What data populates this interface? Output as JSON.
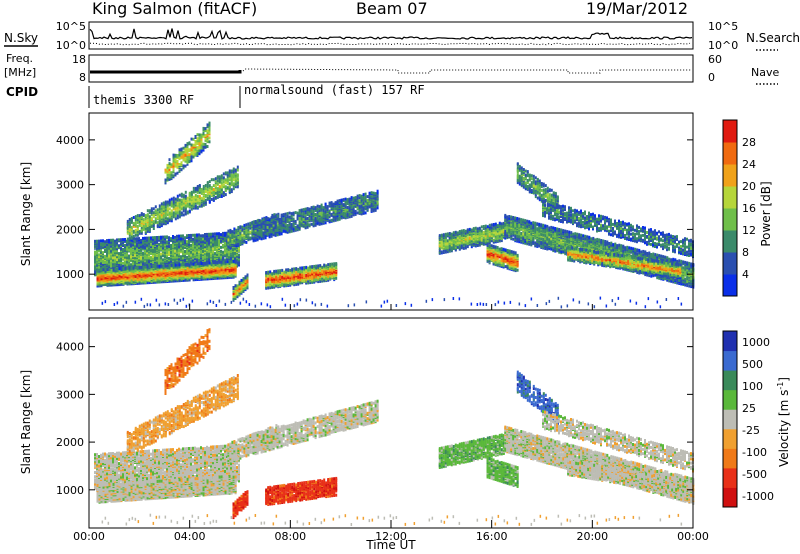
{
  "header": {
    "title": "King Salmon (fitACF)",
    "beam": "Beam 07",
    "date": "19/Mar/2012"
  },
  "colors": {
    "power_scale": [
      "#0a2fe8",
      "#2a4fb0",
      "#3a8a6a",
      "#6fbf4a",
      "#b6d63a",
      "#f0a21a",
      "#f06a10",
      "#e01a10"
    ],
    "velocity_scale": [
      "#2030b0",
      "#3a6ad0",
      "#3a8a5a",
      "#5ab83a",
      "#bdbdb5",
      "#f0a030",
      "#f07a18",
      "#e83018",
      "#d01010"
    ],
    "noise_line": "#000000"
  },
  "chart_data": [
    {
      "id": "noise-panel",
      "type": "line",
      "left_label": "N.Sky",
      "right_label": "N.Search",
      "left_ticks": [
        "10^5",
        "10^0"
      ],
      "right_ticks": [
        "10^5",
        "10^0"
      ],
      "series": [
        {
          "name": "N.Sky",
          "style": "solid"
        },
        {
          "name": "N.Search",
          "style": "dotted"
        }
      ]
    },
    {
      "id": "freq-panel",
      "type": "line",
      "left_label": "Freq.",
      "left_unit": "[MHz]",
      "right_label": "Nave",
      "left_ticks": [
        "18",
        "8"
      ],
      "right_ticks": [
        "60",
        "0"
      ],
      "series": [
        {
          "name": "Freq.",
          "style": "solid"
        },
        {
          "name": "Nave",
          "style": "dotted"
        }
      ]
    },
    {
      "id": "cpid-panel",
      "type": "table",
      "label": "CPID",
      "segments": [
        {
          "start": 0,
          "end": 6,
          "text": "themis 3300 RF"
        },
        {
          "start": 6,
          "end": 24,
          "text": "normalsound (fast) 157 RF"
        }
      ]
    },
    {
      "id": "power-panel",
      "type": "heatmap",
      "ylabel": "Slant Range [km]",
      "yticks": [
        "1000",
        "2000",
        "3000",
        "4000"
      ],
      "ylim": [
        200,
        4600
      ],
      "xlim": [
        0,
        24
      ],
      "colorbar_label": "Power [dB]",
      "colorbar_ticks": [
        "4",
        "8",
        "12",
        "16",
        "20",
        "24",
        "28"
      ],
      "colorbar_range": [
        0,
        32
      ]
    },
    {
      "id": "velocity-panel",
      "type": "heatmap",
      "ylabel": "Slant Range [km]",
      "yticks": [
        "1000",
        "2000",
        "3000",
        "4000"
      ],
      "ylim": [
        200,
        4600
      ],
      "xlim": [
        0,
        24
      ],
      "xlabel": "Time UT",
      "xticks": [
        "00:00",
        "04:00",
        "08:00",
        "12:00",
        "16:00",
        "20:00",
        "00:00"
      ],
      "colorbar_label": "Velocity [m s",
      "colorbar_label_sup": "-1",
      "colorbar_label_end": "]",
      "colorbar_ticks": [
        "1000",
        "500",
        "100",
        "25",
        "-25",
        "-100",
        "-500",
        "-1000"
      ]
    }
  ]
}
